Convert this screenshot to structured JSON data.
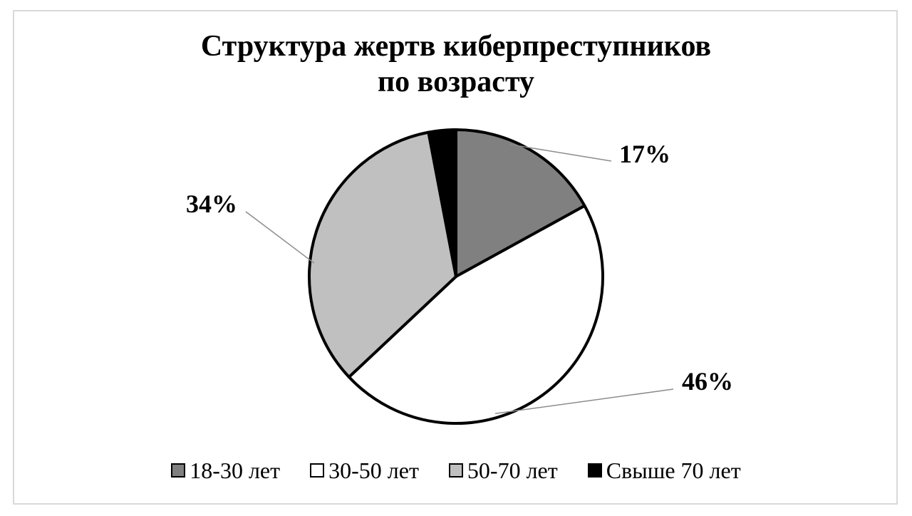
{
  "chart_data": {
    "type": "pie",
    "title_lines": [
      "Структура жертв киберпреступников",
      "по возрасту"
    ],
    "categories": [
      "18-30 лет",
      "30-50 лет",
      "50-70 лет",
      "Свыше 70 лет"
    ],
    "values": [
      17,
      46,
      34,
      3
    ],
    "labels": [
      "17%",
      "46%",
      "34%",
      ""
    ],
    "colors": [
      "#808080",
      "#ffffff",
      "#c0c0c0",
      "#000000"
    ],
    "legend_position": "bottom"
  }
}
